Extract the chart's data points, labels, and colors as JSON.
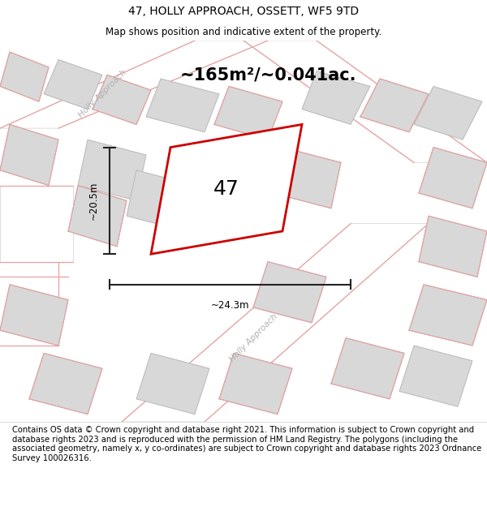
{
  "title": "47, HOLLY APPROACH, OSSETT, WF5 9TD",
  "subtitle": "Map shows position and indicative extent of the property.",
  "area_text": "~165m²/~0.041ac.",
  "label_47": "47",
  "dim_width": "~24.3m",
  "dim_height": "~20.5m",
  "footer_text": "Contains OS data © Crown copyright and database right 2021. This information is subject to Crown copyright and database rights 2023 and is reproduced with the permission of HM Land Registry. The polygons (including the associated geometry, namely x, y co-ordinates) are subject to Crown copyright and database rights 2023 Ordnance Survey 100026316.",
  "bg_color": "#ffffff",
  "map_bg": "#ebebeb",
  "road_color": "#ffffff",
  "building_color": "#d8d8d8",
  "building_edge": "#b8b8b8",
  "pink_line": "#e8a0a0",
  "red_outline": "#cc0000",
  "dim_line_color": "#222222",
  "title_fontsize": 10,
  "subtitle_fontsize": 8.5,
  "area_fontsize": 15,
  "label_fontsize": 18,
  "dim_fontsize": 8.5,
  "footer_fontsize": 7.2,
  "street_label_fontsize": 7.5
}
